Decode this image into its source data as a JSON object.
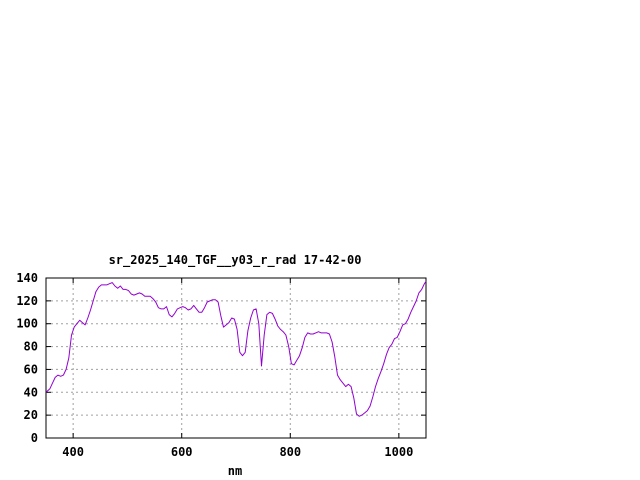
{
  "chart_data": {
    "type": "line",
    "title": "sr_2025_140_TGF__y03_r_rad 17-42-00",
    "xlabel": "nm",
    "ylabel": "",
    "xlim": [
      350,
      1050
    ],
    "ylim": [
      0,
      140
    ],
    "xticks": [
      400,
      600,
      800,
      1000
    ],
    "yticks": [
      0,
      20,
      40,
      60,
      80,
      100,
      120,
      140
    ],
    "grid": true,
    "legend": "none",
    "series": [
      {
        "color": "#9400d3",
        "x": [
          350,
          357,
          362,
          367,
          372,
          377,
          382,
          387,
          392,
          397,
          402,
          407,
          412,
          417,
          422,
          427,
          432,
          437,
          442,
          447,
          452,
          457,
          462,
          467,
          472,
          477,
          482,
          487,
          492,
          497,
          502,
          507,
          512,
          517,
          522,
          527,
          532,
          537,
          542,
          547,
          552,
          557,
          562,
          567,
          572,
          577,
          582,
          587,
          592,
          597,
          602,
          607,
          612,
          617,
          622,
          627,
          632,
          637,
          642,
          647,
          652,
          657,
          662,
          667,
          672,
          677,
          682,
          687,
          692,
          697,
          702,
          707,
          712,
          717,
          722,
          727,
          732,
          737,
          742,
          747,
          752,
          757,
          762,
          767,
          772,
          777,
          782,
          787,
          792,
          797,
          802,
          807,
          812,
          817,
          822,
          827,
          832,
          837,
          842,
          847,
          852,
          857,
          862,
          867,
          872,
          877,
          882,
          887,
          892,
          897,
          902,
          907,
          912,
          917,
          922,
          927,
          932,
          937,
          942,
          947,
          952,
          957,
          962,
          967,
          972,
          977,
          982,
          987,
          992,
          997,
          1002,
          1007,
          1012,
          1017,
          1022,
          1027,
          1032,
          1037,
          1042,
          1047,
          1050
        ],
        "y": [
          40,
          43,
          48,
          53,
          55,
          54,
          55,
          60,
          70,
          90,
          97,
          100,
          103,
          101,
          99,
          105,
          112,
          120,
          128,
          132,
          134,
          134,
          134,
          135,
          136,
          133,
          131,
          133,
          130,
          130,
          129,
          126,
          125,
          126,
          127,
          126,
          124,
          124,
          124,
          122,
          119,
          114,
          113,
          113,
          115,
          108,
          106,
          109,
          113,
          114,
          115,
          114,
          112,
          113,
          116,
          113,
          110,
          110,
          114,
          119,
          120,
          121,
          121,
          119,
          107,
          97,
          99,
          101,
          105,
          104,
          95,
          75,
          72,
          75,
          94,
          105,
          112,
          113,
          100,
          63,
          90,
          108,
          110,
          109,
          104,
          98,
          95,
          93,
          90,
          80,
          65,
          64,
          68,
          72,
          79,
          88,
          92,
          91,
          91,
          92,
          93,
          92,
          92,
          92,
          91,
          84,
          71,
          55,
          51,
          48,
          45,
          47,
          45,
          35,
          21,
          19,
          20,
          22,
          24,
          28,
          36,
          45,
          52,
          58,
          65,
          73,
          79,
          82,
          87,
          88,
          93,
          99,
          100,
          104,
          110,
          115,
          120,
          127,
          130,
          135,
          137
        ]
      }
    ]
  }
}
